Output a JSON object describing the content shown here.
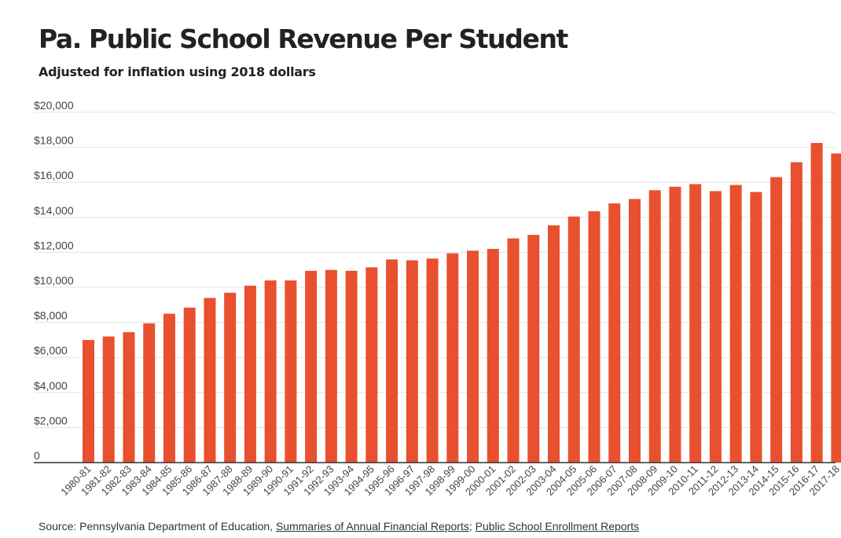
{
  "header": {
    "title": "Pa. Public School Revenue Per Student",
    "subtitle": "Adjusted for inflation using 2018 dollars"
  },
  "source": {
    "prefix": "Source: Pennsylvania Department of Education, ",
    "link1": "Summaries of Annual Financial Reports",
    "separator": "; ",
    "link2": "Public School Enrollment Reports"
  },
  "colors": {
    "bar": "#e8502f",
    "grid": "#e3e3e3",
    "axis": "#333333",
    "text": "#444444"
  },
  "chart_data": {
    "type": "bar",
    "title": "Pa. Public School Revenue Per Student",
    "subtitle": "Adjusted for inflation using 2018 dollars",
    "xlabel": "",
    "ylabel": "",
    "ylim": [
      0,
      20000
    ],
    "yticks": [
      0,
      2000,
      4000,
      6000,
      8000,
      10000,
      12000,
      14000,
      16000,
      18000,
      20000
    ],
    "ytick_labels": [
      "0",
      "$2,000",
      "$4,000",
      "$6,000",
      "$8,000",
      "$10,000",
      "$12,000",
      "$14,000",
      "$16,000",
      "$18,000",
      "$20,000"
    ],
    "grid": true,
    "legend": "none",
    "categories": [
      "1980-81",
      "1981-82",
      "1982-83",
      "1983-84",
      "1984-85",
      "1985-86",
      "1986-87",
      "1987-88",
      "1988-89",
      "1989-90",
      "1990-91",
      "1991-92",
      "1992-93",
      "1993-94",
      "1994-95",
      "1995-96",
      "1996-97",
      "1997-98",
      "1998-99",
      "1999-00",
      "2000-01",
      "2001-02",
      "2002-03",
      "2003-04",
      "2004-05",
      "2005-06",
      "2006-07",
      "2007-08",
      "2008-09",
      "2009-10",
      "2010-11",
      "2011-12",
      "2012-13",
      "2013-14",
      "2014-15",
      "2015-16",
      "2016-17",
      "2017-18"
    ],
    "values": [
      7000,
      7200,
      7450,
      7950,
      8500,
      8850,
      9400,
      9700,
      10100,
      10400,
      10400,
      10950,
      11000,
      10950,
      11150,
      11600,
      11550,
      11650,
      11950,
      12100,
      12200,
      12800,
      13000,
      13550,
      14050,
      14350,
      14800,
      15050,
      15550,
      15750,
      15900,
      15500,
      15850,
      15450,
      16300,
      17150,
      18250,
      17650
    ]
  }
}
